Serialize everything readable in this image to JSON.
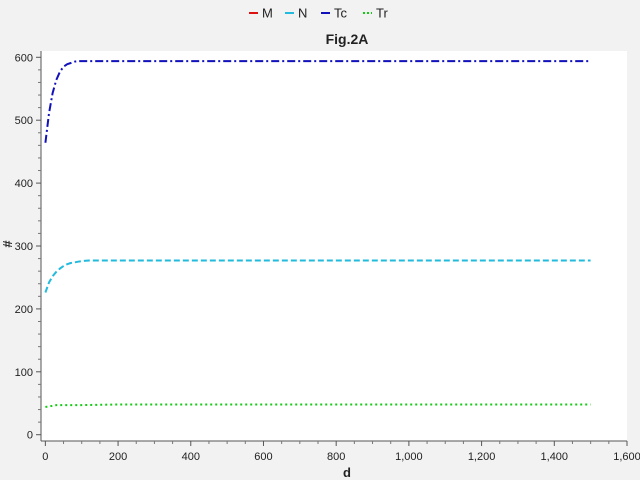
{
  "chart_data": {
    "type": "line",
    "title": "Fig.2A",
    "xlabel": "d",
    "ylabel": "#",
    "xlim": [
      -12,
      1600
    ],
    "ylim": [
      -10,
      610
    ],
    "x_ticks": [
      0,
      200,
      400,
      600,
      800,
      1000,
      1200,
      1400,
      1600
    ],
    "x_tick_labels": [
      "0",
      "200",
      "400",
      "600",
      "800",
      "1,000",
      "1,200",
      "1,400",
      "1,600"
    ],
    "y_ticks": [
      0,
      100,
      200,
      300,
      400,
      500,
      600
    ],
    "y_tick_labels": [
      "0",
      "100",
      "200",
      "300",
      "400",
      "500",
      "600"
    ],
    "legend_position": "top-center",
    "grid": false,
    "series": [
      {
        "name": "M",
        "color": "#dd1111",
        "style": "solid",
        "x": [],
        "y": []
      },
      {
        "name": "N",
        "color": "#22bbdd",
        "style": "dashed",
        "x": [
          0,
          10,
          20,
          30,
          40,
          50,
          60,
          70,
          80,
          90,
          100,
          120,
          150,
          200,
          300,
          500,
          1000,
          1500
        ],
        "y": [
          226,
          242,
          252,
          259,
          264,
          268,
          271,
          273,
          274,
          275,
          276,
          277,
          277,
          277,
          277,
          277,
          277,
          277
        ]
      },
      {
        "name": "Tc",
        "color": "#1111bb",
        "style": "dashdot",
        "x": [
          0,
          10,
          20,
          30,
          40,
          50,
          60,
          70,
          80,
          90,
          100,
          120,
          150,
          200,
          300,
          500,
          1000,
          1500
        ],
        "y": [
          464,
          511,
          543,
          564,
          577,
          585,
          589,
          591,
          593,
          594,
          594,
          594,
          594,
          594,
          594,
          594,
          594,
          594
        ]
      },
      {
        "name": "Tr",
        "color": "#11cc11",
        "style": "dotted",
        "x": [
          0,
          10,
          20,
          30,
          50,
          100,
          200,
          300,
          500,
          1000,
          1500
        ],
        "y": [
          44,
          45,
          46,
          47,
          47,
          47,
          48,
          48,
          48,
          48,
          48
        ]
      }
    ]
  }
}
